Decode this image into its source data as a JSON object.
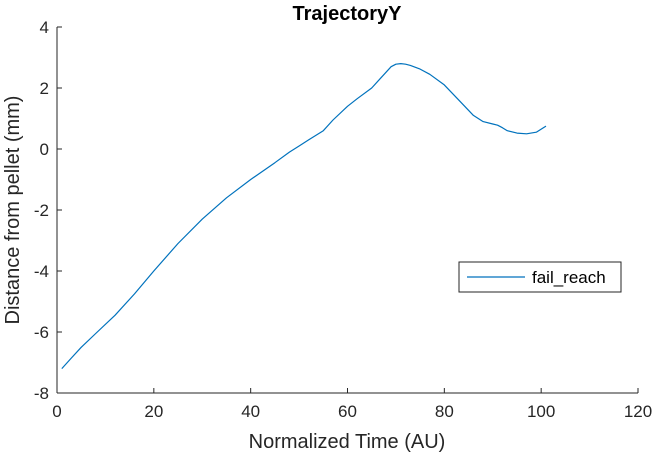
{
  "chart_data": {
    "type": "line",
    "title": "TrajectoryY",
    "xlabel": "Normalized Time (AU)",
    "ylabel": "Distance from pellet (mm)",
    "xlim": [
      0,
      120
    ],
    "ylim": [
      -8,
      4
    ],
    "xticks": [
      0,
      20,
      40,
      60,
      80,
      100,
      120
    ],
    "yticks": [
      -8,
      -6,
      -4,
      -2,
      0,
      2,
      4
    ],
    "grid": false,
    "legend_position": "right",
    "series": [
      {
        "name": "fail_reach",
        "color": "#0072BD",
        "x": [
          1,
          3,
          5,
          8,
          12,
          16,
          20,
          25,
          30,
          35,
          40,
          45,
          48,
          50,
          52,
          55,
          57,
          60,
          62,
          65,
          67,
          69,
          70,
          71,
          72,
          73,
          75,
          77,
          80,
          83,
          86,
          88,
          90,
          91,
          92,
          93,
          95,
          97,
          99,
          101
        ],
        "y": [
          -7.2,
          -6.85,
          -6.5,
          -6.05,
          -5.45,
          -4.75,
          -4.0,
          -3.1,
          -2.3,
          -1.6,
          -1.0,
          -0.45,
          -0.1,
          0.1,
          0.3,
          0.6,
          0.95,
          1.4,
          1.65,
          2.0,
          2.35,
          2.7,
          2.78,
          2.8,
          2.78,
          2.74,
          2.62,
          2.45,
          2.1,
          1.6,
          1.1,
          0.9,
          0.82,
          0.78,
          0.7,
          0.6,
          0.52,
          0.5,
          0.55,
          0.75
        ]
      }
    ]
  }
}
